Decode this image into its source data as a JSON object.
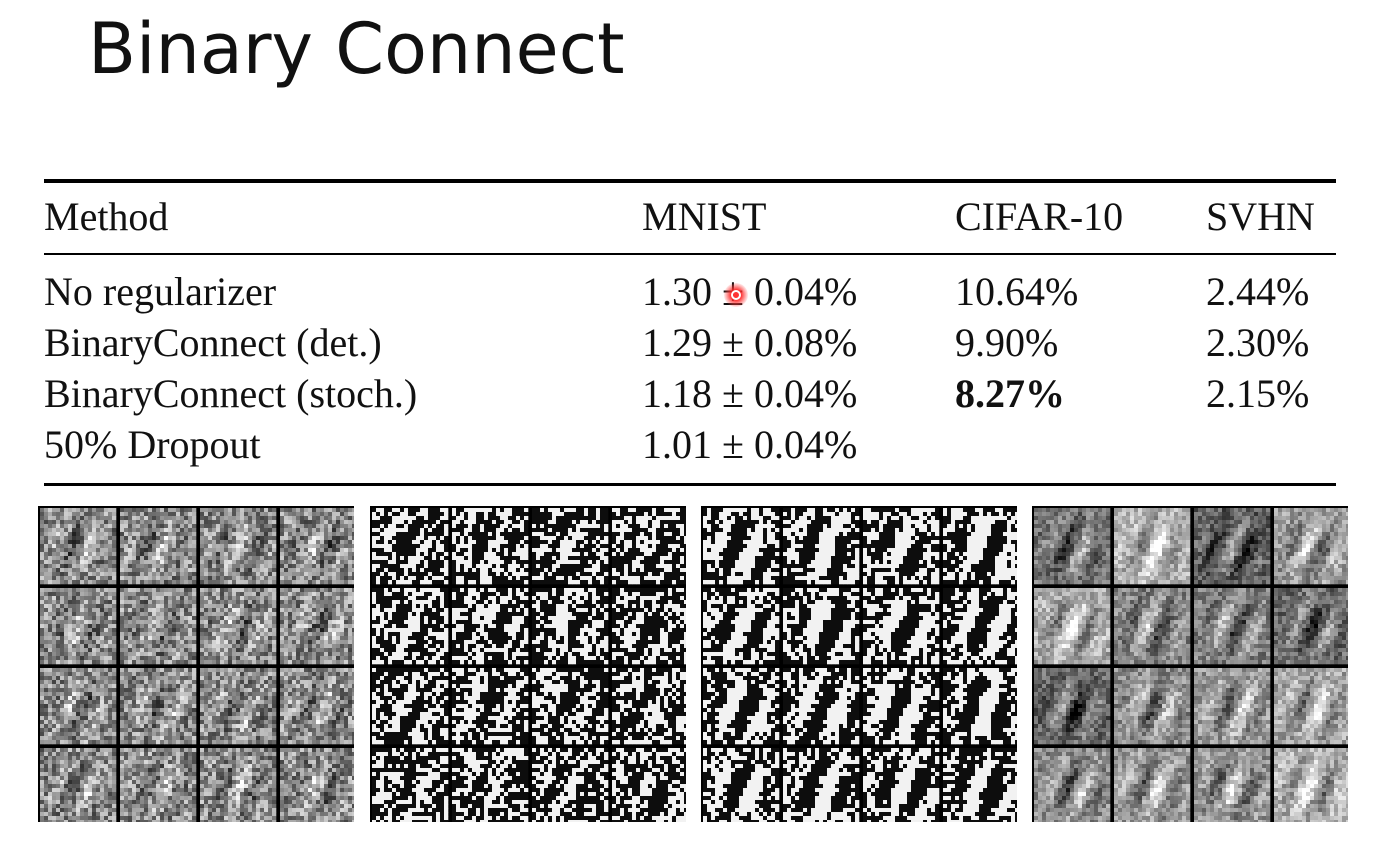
{
  "slide": {
    "title": "Binary Connect"
  },
  "table": {
    "headers": [
      "Method",
      "MNIST",
      "CIFAR-10",
      "SVHN"
    ],
    "rows": [
      {
        "method": "No regularizer",
        "mnist": "1.30 ± 0.04%",
        "cifar10": "10.64%",
        "svhn": "2.44%"
      },
      {
        "method": "BinaryConnect (det.)",
        "mnist": "1.29 ± 0.08%",
        "cifar10": "9.90%",
        "svhn": "2.30%"
      },
      {
        "method": "BinaryConnect (stoch.)",
        "mnist": "1.18 ± 0.04%",
        "cifar10": "8.27%",
        "svhn": "2.15%"
      },
      {
        "method": "50% Dropout",
        "mnist": "1.01 ± 0.04%",
        "cifar10": "",
        "svhn": ""
      }
    ],
    "bold_cell": "rows.2.cifar10"
  },
  "filter_panels": [
    {
      "style": "low-contrast-gray"
    },
    {
      "style": "binary-noise"
    },
    {
      "style": "binary-structured"
    },
    {
      "style": "gray-smooth"
    }
  ]
}
